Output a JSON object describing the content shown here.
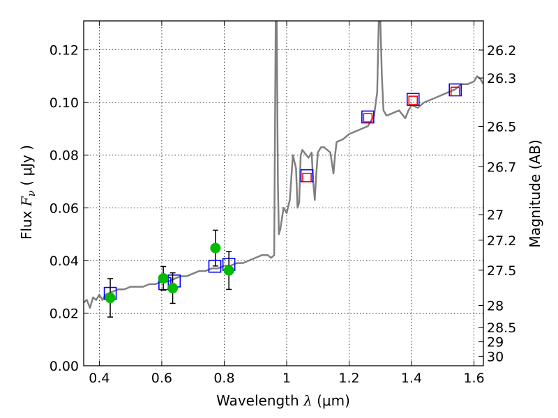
{
  "chart_data": {
    "type": "scatter",
    "xlabel": {
      "prefix": "Wavelength  ",
      "symbol": "λ",
      "suffix": " (μm)"
    },
    "ylabel": {
      "prefix": "Flux  ",
      "symbol": "F",
      "subscript": "ν",
      "suffix": "  ( μJy )"
    },
    "ylabel_right": "Magnitude (AB)",
    "xlim": [
      0.35,
      1.63
    ],
    "ylim": [
      0.0,
      0.131
    ],
    "grid": true,
    "x_ticks": [
      0.4,
      0.6,
      0.8,
      1.0,
      1.2,
      1.4,
      1.6
    ],
    "x_tick_labels": [
      "0.4",
      "0.6",
      "0.8",
      "1",
      "1.2",
      "1.4",
      "1.6"
    ],
    "y_ticks": [
      0.0,
      0.02,
      0.04,
      0.06,
      0.08,
      0.1,
      0.12
    ],
    "y_tick_labels": [
      "0.00",
      "0.02",
      "0.04",
      "0.06",
      "0.08",
      "0.10",
      "0.12"
    ],
    "right_ticks": [
      {
        "label": "26.2",
        "flux": 0.1199
      },
      {
        "label": "26.3",
        "flux": 0.1093
      },
      {
        "label": "26.5",
        "flux": 0.0909
      },
      {
        "label": "26.7",
        "flux": 0.0756
      },
      {
        "label": "27",
        "flux": 0.0574
      },
      {
        "label": "27.2",
        "flux": 0.0477
      },
      {
        "label": "27.5",
        "flux": 0.0363
      },
      {
        "label": "28",
        "flux": 0.0229
      },
      {
        "label": "28.5",
        "flux": 0.0145
      },
      {
        "label": "29",
        "flux": 0.0091
      },
      {
        "label": "30",
        "flux": 0.0036
      }
    ],
    "series": [
      {
        "kind": "line",
        "color": "#808080",
        "points": [
          [
            0.35,
            0.024
          ],
          [
            0.36,
            0.025
          ],
          [
            0.37,
            0.022
          ],
          [
            0.38,
            0.026
          ],
          [
            0.39,
            0.025
          ],
          [
            0.4,
            0.027
          ],
          [
            0.41,
            0.025
          ],
          [
            0.42,
            0.027
          ],
          [
            0.44,
            0.028
          ],
          [
            0.46,
            0.029
          ],
          [
            0.48,
            0.029
          ],
          [
            0.5,
            0.03
          ],
          [
            0.52,
            0.03
          ],
          [
            0.54,
            0.03
          ],
          [
            0.56,
            0.031
          ],
          [
            0.58,
            0.031
          ],
          [
            0.6,
            0.032
          ],
          [
            0.62,
            0.032
          ],
          [
            0.64,
            0.033
          ],
          [
            0.66,
            0.034
          ],
          [
            0.68,
            0.034
          ],
          [
            0.7,
            0.035
          ],
          [
            0.72,
            0.036
          ],
          [
            0.74,
            0.036
          ],
          [
            0.76,
            0.037
          ],
          [
            0.78,
            0.037
          ],
          [
            0.8,
            0.038
          ],
          [
            0.82,
            0.038
          ],
          [
            0.84,
            0.039
          ],
          [
            0.86,
            0.039
          ],
          [
            0.88,
            0.04
          ],
          [
            0.9,
            0.041
          ],
          [
            0.92,
            0.042
          ],
          [
            0.94,
            0.042
          ],
          [
            0.95,
            0.041
          ],
          [
            0.96,
            0.042
          ],
          [
            0.962,
            0.08
          ],
          [
            0.965,
            0.131
          ],
          [
            0.968,
            0.131
          ],
          [
            0.972,
            0.07
          ],
          [
            0.975,
            0.05
          ],
          [
            0.98,
            0.052
          ],
          [
            0.99,
            0.06
          ],
          [
            1.0,
            0.058
          ],
          [
            1.01,
            0.063
          ],
          [
            1.02,
            0.08
          ],
          [
            1.03,
            0.075
          ],
          [
            1.035,
            0.06
          ],
          [
            1.04,
            0.062
          ],
          [
            1.045,
            0.08
          ],
          [
            1.05,
            0.082
          ],
          [
            1.07,
            0.079
          ],
          [
            1.08,
            0.081
          ],
          [
            1.085,
            0.07
          ],
          [
            1.09,
            0.063
          ],
          [
            1.095,
            0.073
          ],
          [
            1.1,
            0.081
          ],
          [
            1.11,
            0.083
          ],
          [
            1.12,
            0.083
          ],
          [
            1.14,
            0.081
          ],
          [
            1.15,
            0.073
          ],
          [
            1.155,
            0.08
          ],
          [
            1.16,
            0.085
          ],
          [
            1.18,
            0.086
          ],
          [
            1.2,
            0.088
          ],
          [
            1.22,
            0.089
          ],
          [
            1.24,
            0.09
          ],
          [
            1.26,
            0.091
          ],
          [
            1.27,
            0.093
          ],
          [
            1.28,
            0.095
          ],
          [
            1.29,
            0.104
          ],
          [
            1.295,
            0.131
          ],
          [
            1.3,
            0.131
          ],
          [
            1.305,
            0.11
          ],
          [
            1.31,
            0.097
          ],
          [
            1.32,
            0.095
          ],
          [
            1.34,
            0.096
          ],
          [
            1.36,
            0.097
          ],
          [
            1.38,
            0.094
          ],
          [
            1.39,
            0.097
          ],
          [
            1.4,
            0.099
          ],
          [
            1.42,
            0.098
          ],
          [
            1.44,
            0.1
          ],
          [
            1.46,
            0.101
          ],
          [
            1.48,
            0.102
          ],
          [
            1.5,
            0.103
          ],
          [
            1.52,
            0.104
          ],
          [
            1.54,
            0.105
          ],
          [
            1.56,
            0.107
          ],
          [
            1.58,
            0.107
          ],
          [
            1.6,
            0.108
          ],
          [
            1.61,
            0.11
          ],
          [
            1.62,
            0.109
          ],
          [
            1.63,
            0.107
          ]
        ]
      },
      {
        "kind": "open-squares",
        "color": "#0000ff",
        "points": [
          [
            0.435,
            0.0275
          ],
          [
            0.61,
            0.0312
          ],
          [
            0.64,
            0.0322
          ],
          [
            0.77,
            0.0378
          ],
          [
            0.815,
            0.0385
          ],
          [
            1.065,
            0.0722
          ],
          [
            1.26,
            0.0945
          ],
          [
            1.405,
            0.1012
          ],
          [
            1.54,
            0.1048
          ]
        ]
      },
      {
        "kind": "open-squares",
        "color": "#ff0000",
        "points": [
          [
            1.065,
            0.0715
          ],
          [
            1.26,
            0.0942
          ],
          [
            1.405,
            0.1008
          ],
          [
            1.54,
            0.1042
          ]
        ]
      },
      {
        "kind": "filled-circles-with-errorbars",
        "color": "#00bb00",
        "points": [
          {
            "x": 0.435,
            "y": 0.0258,
            "err": 0.0073
          },
          {
            "x": 0.605,
            "y": 0.0332,
            "err": 0.0045
          },
          {
            "x": 0.635,
            "y": 0.0295,
            "err": 0.0058
          },
          {
            "x": 0.772,
            "y": 0.0447,
            "err": 0.0068
          },
          {
            "x": 0.815,
            "y": 0.0362,
            "err": 0.0072
          }
        ]
      }
    ]
  }
}
